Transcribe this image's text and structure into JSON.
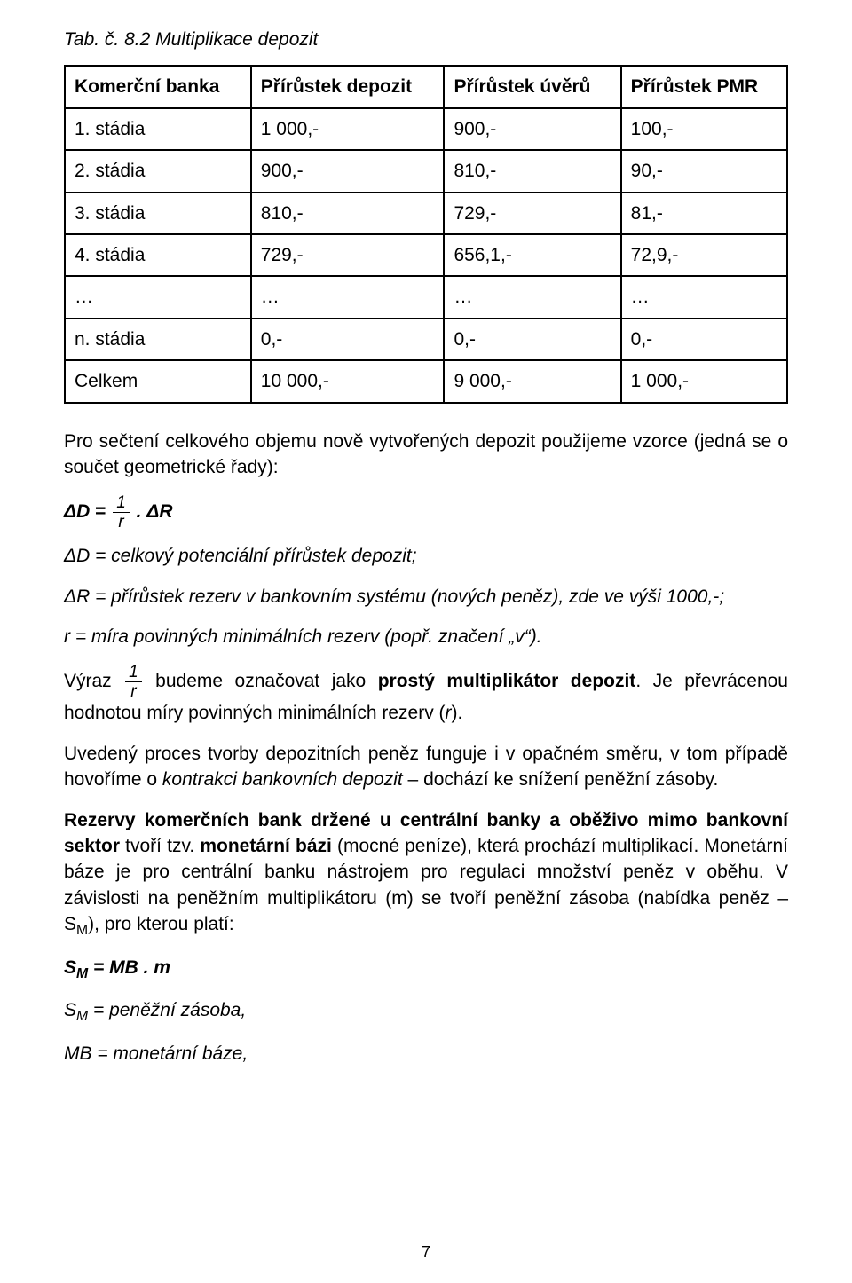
{
  "caption": "Tab. č. 8.2 Multiplikace depozit",
  "table": {
    "columns": [
      "Komerční banka",
      "Přírůstek depozit",
      "Přírůstek úvěrů",
      "Přírůstek PMR"
    ],
    "col_widths_pct": [
      29,
      27,
      24,
      20
    ],
    "border_color": "#000000",
    "background_color": "#ffffff",
    "header_fontweight": "bold",
    "rows": [
      [
        "1. stádia",
        "1 000,-",
        "900,-",
        "100,-"
      ],
      [
        "2. stádia",
        "900,-",
        "810,-",
        "90,-"
      ],
      [
        "3. stádia",
        "810,-",
        "729,-",
        "81,-"
      ],
      [
        "4. stádia",
        "729,-",
        "656,1,-",
        "72,9,-"
      ],
      [
        "…",
        "…",
        "…",
        "…"
      ],
      [
        "n. stádia",
        "0,-",
        "0,-",
        "0,-"
      ],
      [
        "Celkem",
        "10 000,-",
        "9 000,-",
        "1 000,-"
      ]
    ]
  },
  "para_intro": "Pro sečtení celkového objemu nově vytvořených depozit použijeme vzorce (jedná se o součet geometrické řady):",
  "eq1": {
    "lhs_italic": "ΔD",
    "eq": " = ",
    "frac_num": "1",
    "frac_den": "r",
    "tail": " . ΔR"
  },
  "def_dd": "ΔD = celkový potenciální přírůstek depozit;",
  "def_dr": "ΔR = přírůstek rezerv v bankovním systému (nových peněz), zde ve výši 1000,-;",
  "def_r": "r = míra povinných minimálních rezerv (popř. značení „v“).",
  "para_vyraz_pre": "Výraz ",
  "para_vyraz_mid": " budeme označovat jako ",
  "para_vyraz_bold": "prostý multiplikátor depozit",
  "para_vyraz_post1": ". Je převrácenou hodnotou míry povinných minimálních rezerv (",
  "para_vyraz_r": "r",
  "para_vyraz_post2": ").",
  "para_proces_a": "Uvedený proces tvorby depozitních peněz funguje i v opačném směru, v tom případě hovoříme o ",
  "para_proces_ital": "kontrakci bankovních depozit",
  "para_proces_b": " – dochází ke snížení peněžní zásoby.",
  "para_rezervy_bold1": "Rezervy komerčních bank držené u centrální banky a oběživo mimo bankovní sektor",
  "para_rezervy_a": " tvoří tzv. ",
  "para_rezervy_bold2": "monetární bázi",
  "para_rezervy_b": " (mocné peníze), která prochází multiplikací. Monetární báze je pro centrální banku nástrojem pro regulaci množství peněz v oběhu. V závislosti na peněžním multiplikátoru (m) se tvoří peněžní zásoba (nabídka peněz – S",
  "para_rezervy_sub1": "M",
  "para_rezervy_c": "), pro kterou platí:",
  "eq2_pre": "S",
  "eq2_sub": "M",
  "eq2_post": " = MB . m",
  "def_sm_pre": "S",
  "def_sm_sub": "M",
  "def_sm_post": " = peněžní zásoba,",
  "def_mb": "MB = monetární báze,",
  "page_number": "7",
  "colors": {
    "text": "#000000",
    "background": "#ffffff",
    "border": "#000000"
  },
  "typography": {
    "base_font_family": "Arial",
    "base_font_size_pt": 16,
    "caption_style": "italic",
    "defs_style": "italic"
  }
}
